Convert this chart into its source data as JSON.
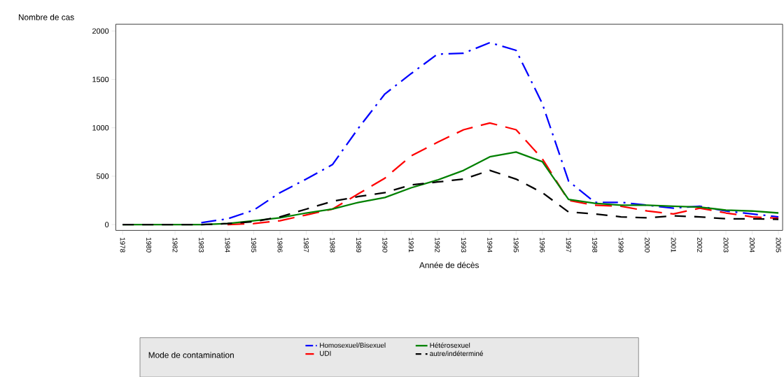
{
  "chart_data": {
    "type": "line",
    "xlabel": "Année de décès",
    "ylabel": "Nombre de cas",
    "legend_title": "Mode de contamination",
    "categories": [
      "1978",
      "1980",
      "1982",
      "1983",
      "1984",
      "1985",
      "1986",
      "1987",
      "1988",
      "1989",
      "1990",
      "1991",
      "1992",
      "1993",
      "1994",
      "1995",
      "1996",
      "1997",
      "1998",
      "1999",
      "2000",
      "2001",
      "2002",
      "2003",
      "2004",
      "2005"
    ],
    "series": [
      {
        "name": "Homosexuel/Bisexuel",
        "color": "#0000ff",
        "line_style": "dashed",
        "values": [
          null,
          null,
          null,
          20,
          60,
          150,
          330,
          470,
          620,
          1000,
          1350,
          1560,
          1760,
          1770,
          1880,
          1800,
          1250,
          450,
          230,
          230,
          200,
          170,
          190,
          140,
          110,
          80
        ]
      },
      {
        "name": "UDI",
        "color": "#ff0000",
        "line_style": "dashed",
        "values": [
          null,
          null,
          null,
          null,
          0,
          10,
          40,
          100,
          160,
          320,
          480,
          710,
          850,
          980,
          1050,
          980,
          680,
          250,
          200,
          190,
          140,
          110,
          170,
          120,
          80,
          65
        ]
      },
      {
        "name": "Hétérosexuel",
        "color": "#008000",
        "line_style": "solid",
        "values": [
          0,
          0,
          0,
          0,
          10,
          40,
          70,
          120,
          160,
          230,
          280,
          380,
          460,
          560,
          700,
          750,
          650,
          260,
          220,
          200,
          200,
          190,
          180,
          150,
          140,
          120
        ]
      },
      {
        "name": "autre/indéterminé",
        "color": "#000000",
        "line_style": "dashed",
        "values": [
          0,
          0,
          0,
          0,
          10,
          30,
          80,
          160,
          240,
          290,
          330,
          410,
          440,
          470,
          560,
          470,
          330,
          130,
          110,
          80,
          70,
          90,
          80,
          60,
          60,
          55
        ]
      }
    ],
    "ylim": [
      -60,
      2070
    ],
    "yticks": [
      0,
      500,
      1000,
      1500,
      2000
    ],
    "legend": "bottom",
    "marker": "none"
  }
}
